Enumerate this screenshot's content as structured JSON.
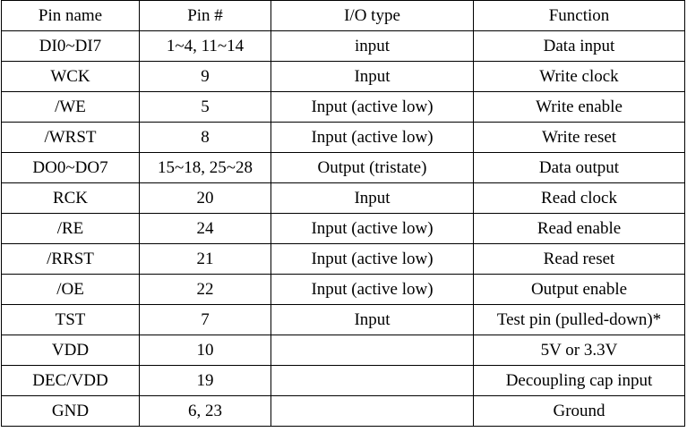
{
  "table": {
    "headers": [
      "Pin name",
      "Pin #",
      "I/O type",
      "Function"
    ],
    "rows": [
      [
        "DI0~DI7",
        "1~4, 11~14",
        "input",
        "Data input"
      ],
      [
        "WCK",
        "9",
        "Input",
        "Write clock"
      ],
      [
        "/WE",
        "5",
        "Input (active low)",
        "Write enable"
      ],
      [
        "/WRST",
        "8",
        "Input (active low)",
        "Write reset"
      ],
      [
        "DO0~DO7",
        "15~18, 25~28",
        "Output (tristate)",
        "Data output"
      ],
      [
        "RCK",
        "20",
        "Input",
        "Read clock"
      ],
      [
        "/RE",
        "24",
        "Input (active low)",
        "Read enable"
      ],
      [
        "/RRST",
        "21",
        "Input (active low)",
        "Read reset"
      ],
      [
        "/OE",
        "22",
        "Input (active low)",
        "Output enable"
      ],
      [
        "TST",
        "7",
        "Input",
        "Test pin (pulled-down)*"
      ],
      [
        "VDD",
        "10",
        "",
        "5V or 3.3V"
      ],
      [
        "DEC/VDD",
        "19",
        "",
        "Decoupling cap input"
      ],
      [
        "GND",
        "6, 23",
        "",
        "Ground"
      ]
    ]
  }
}
